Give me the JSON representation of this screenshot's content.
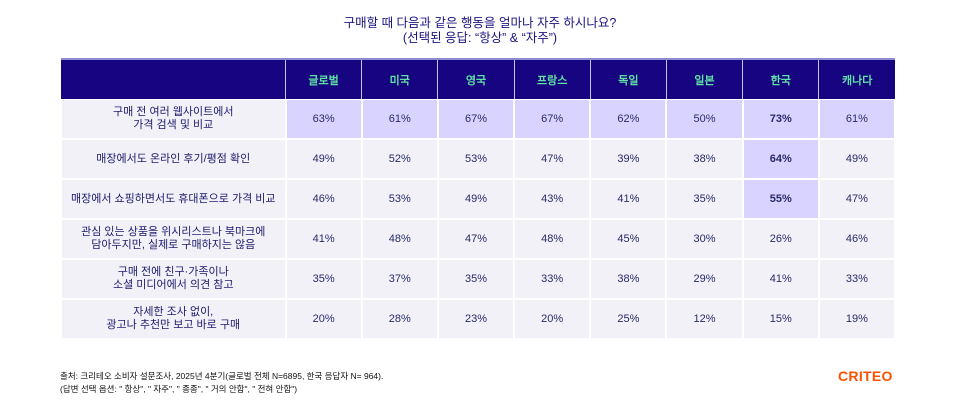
{
  "chart_data": {
    "type": "table",
    "title": "구매할 때 다음과 같은 행동을 얼마나 자주 하시나요?",
    "subtitle": "(선택된 응답: “항상” & “자주”)",
    "columns": [
      "글로벌",
      "미국",
      "영국",
      "프랑스",
      "독일",
      "일본",
      "한국",
      "캐나다"
    ],
    "rows": [
      {
        "label": [
          "구매 전 여러 웹사이트에서",
          "가격 검색 및 비교"
        ],
        "values": [
          "63%",
          "61%",
          "67%",
          "67%",
          "62%",
          "50%",
          "73%",
          "61%"
        ],
        "highlight": "row"
      },
      {
        "label": [
          "매장에서도 온라인 후기/평점 확인"
        ],
        "values": [
          "49%",
          "52%",
          "53%",
          "47%",
          "39%",
          "38%",
          "64%",
          "49%"
        ],
        "highlight": "korea"
      },
      {
        "label": [
          "매장에서 쇼핑하면서도 휴대폰으로 가격 비교"
        ],
        "values": [
          "46%",
          "53%",
          "49%",
          "43%",
          "41%",
          "35%",
          "55%",
          "47%"
        ],
        "highlight": "korea"
      },
      {
        "label": [
          "관심 있는 상품을 위시리스트나 북마크에",
          "담아두지만, 실제로 구매하지는 않음"
        ],
        "values": [
          "41%",
          "48%",
          "47%",
          "48%",
          "45%",
          "30%",
          "26%",
          "46%"
        ],
        "highlight": "none"
      },
      {
        "label": [
          "구매 전에 친구·가족이나",
          "소셜 미디어에서 의견 참고"
        ],
        "values": [
          "35%",
          "37%",
          "35%",
          "33%",
          "38%",
          "29%",
          "41%",
          "33%"
        ],
        "highlight": "none"
      },
      {
        "label": [
          "자세한 조사 없이,",
          "광고나 추천만 보고 바로 구매"
        ],
        "values": [
          "20%",
          "28%",
          "23%",
          "20%",
          "25%",
          "12%",
          "15%",
          "19%"
        ],
        "highlight": "none"
      }
    ],
    "colors": {
      "header_bg": "#170480",
      "header_text": "#5fe0a4",
      "highlight": "#d9d4ff",
      "cell": "#f1f1f7"
    }
  },
  "footnote": {
    "line1": "출처: 크리테오 소비자 설문조사, 2025년 4분기(글로벌 전체 N=6895, 한국 응답자 N= 964).",
    "line2": "(답변 선택 옵션: \" 항상\", \" 자주\", \" 종종\", \" 거의 안함\", \" 전혀 안함\")"
  },
  "logo": "CRITEO"
}
